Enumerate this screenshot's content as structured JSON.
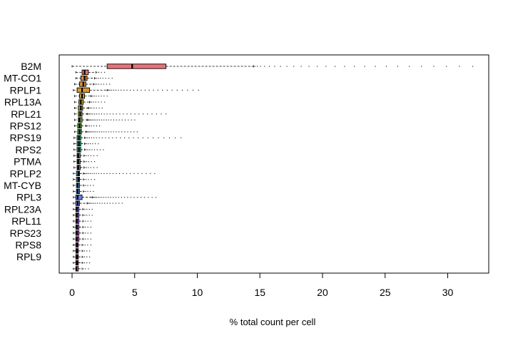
{
  "chart_data": {
    "type": "boxplot",
    "orientation": "horizontal",
    "xlabel": "% total count per cell",
    "xlim": [
      -1,
      33
    ],
    "xticks": [
      0,
      5,
      10,
      15,
      20,
      25,
      30
    ],
    "labeled_categories": [
      "B2M",
      "MT-CO1",
      "RPLP1",
      "RPL13A",
      "RPL21",
      "RPS12",
      "RPS19",
      "RPS2",
      "PTMA",
      "RPLP2",
      "MT-CYB",
      "RPL3",
      "RPL23A",
      "RPL11",
      "RPS23",
      "RPS8",
      "RPL9"
    ],
    "boxes": [
      {
        "q1": 2.8,
        "median": 4.8,
        "q3": 7.5,
        "wmin": 0.0,
        "wmax": 14.5,
        "outmax": 32.0,
        "color": "#E8727A"
      },
      {
        "q1": 0.8,
        "median": 1.0,
        "q3": 1.3,
        "wmin": 0.3,
        "wmax": 1.9,
        "outmax": 2.6,
        "color": "#E07A6A"
      },
      {
        "q1": 0.7,
        "median": 1.0,
        "q3": 1.2,
        "wmin": 0.3,
        "wmax": 1.8,
        "outmax": 3.2,
        "color": "#D8863A"
      },
      {
        "q1": 0.6,
        "median": 0.9,
        "q3": 1.1,
        "wmin": 0.2,
        "wmax": 1.7,
        "outmax": 3.0,
        "color": "#D89038"
      },
      {
        "q1": 0.4,
        "median": 0.8,
        "q3": 1.4,
        "wmin": 0.1,
        "wmax": 2.8,
        "outmax": 10.1,
        "color": "#D89A2E"
      },
      {
        "q1": 0.6,
        "median": 0.8,
        "q3": 1.0,
        "wmin": 0.2,
        "wmax": 1.5,
        "outmax": 2.8,
        "color": "#C9A227"
      },
      {
        "q1": 0.55,
        "median": 0.7,
        "q3": 0.9,
        "wmin": 0.2,
        "wmax": 1.4,
        "outmax": 2.6,
        "color": "#B9A923"
      },
      {
        "q1": 0.5,
        "median": 0.7,
        "q3": 0.85,
        "wmin": 0.2,
        "wmax": 1.3,
        "outmax": 2.4,
        "color": "#A8AE22"
      },
      {
        "q1": 0.5,
        "median": 0.65,
        "q3": 0.8,
        "wmin": 0.2,
        "wmax": 1.2,
        "outmax": 7.5,
        "color": "#94B324"
      },
      {
        "q1": 0.5,
        "median": 0.6,
        "q3": 0.8,
        "wmin": 0.2,
        "wmax": 1.2,
        "outmax": 5.0,
        "color": "#7CB72C"
      },
      {
        "q1": 0.45,
        "median": 0.6,
        "q3": 0.75,
        "wmin": 0.2,
        "wmax": 1.1,
        "outmax": 2.2,
        "color": "#5EBA3A"
      },
      {
        "q1": 0.45,
        "median": 0.6,
        "q3": 0.75,
        "wmin": 0.2,
        "wmax": 1.1,
        "outmax": 5.2,
        "color": "#3DBC4C"
      },
      {
        "q1": 0.4,
        "median": 0.55,
        "q3": 0.7,
        "wmin": 0.15,
        "wmax": 1.0,
        "outmax": 8.7,
        "color": "#20BD62"
      },
      {
        "q1": 0.4,
        "median": 0.55,
        "q3": 0.7,
        "wmin": 0.15,
        "wmax": 1.0,
        "outmax": 2.1,
        "color": "#10BD7A"
      },
      {
        "q1": 0.4,
        "median": 0.55,
        "q3": 0.7,
        "wmin": 0.15,
        "wmax": 1.0,
        "outmax": 2.5,
        "color": "#12BB92"
      },
      {
        "q1": 0.4,
        "median": 0.5,
        "q3": 0.65,
        "wmin": 0.15,
        "wmax": 0.95,
        "outmax": 2.0,
        "color": "#18B9A8"
      },
      {
        "q1": 0.4,
        "median": 0.5,
        "q3": 0.65,
        "wmin": 0.15,
        "wmax": 0.95,
        "outmax": 1.8,
        "color": "#1EB6BC"
      },
      {
        "q1": 0.4,
        "median": 0.5,
        "q3": 0.65,
        "wmin": 0.15,
        "wmax": 0.95,
        "outmax": 2.0,
        "color": "#22B2CD"
      },
      {
        "q1": 0.35,
        "median": 0.5,
        "q3": 0.6,
        "wmin": 0.1,
        "wmax": 0.9,
        "outmax": 6.6,
        "color": "#26ACDC"
      },
      {
        "q1": 0.35,
        "median": 0.5,
        "q3": 0.6,
        "wmin": 0.1,
        "wmax": 0.9,
        "outmax": 1.8,
        "color": "#2AA4E6"
      },
      {
        "q1": 0.35,
        "median": 0.45,
        "q3": 0.6,
        "wmin": 0.1,
        "wmax": 0.9,
        "outmax": 1.7,
        "color": "#3A9AEE"
      },
      {
        "q1": 0.35,
        "median": 0.45,
        "q3": 0.6,
        "wmin": 0.1,
        "wmax": 0.9,
        "outmax": 1.7,
        "color": "#4C90F2"
      },
      {
        "q1": 0.3,
        "median": 0.45,
        "q3": 0.8,
        "wmin": 0.1,
        "wmax": 1.6,
        "outmax": 6.7,
        "color": "#5C86F4"
      },
      {
        "q1": 0.3,
        "median": 0.45,
        "q3": 0.6,
        "wmin": 0.1,
        "wmax": 1.2,
        "outmax": 4.0,
        "color": "#6E7CF4"
      },
      {
        "q1": 0.3,
        "median": 0.4,
        "q3": 0.55,
        "wmin": 0.1,
        "wmax": 0.85,
        "outmax": 1.6,
        "color": "#8274F2"
      },
      {
        "q1": 0.3,
        "median": 0.4,
        "q3": 0.55,
        "wmin": 0.1,
        "wmax": 0.85,
        "outmax": 1.6,
        "color": "#946CEE"
      },
      {
        "q1": 0.3,
        "median": 0.4,
        "q3": 0.55,
        "wmin": 0.1,
        "wmax": 0.85,
        "outmax": 1.5,
        "color": "#A666E8"
      },
      {
        "q1": 0.3,
        "median": 0.4,
        "q3": 0.55,
        "wmin": 0.1,
        "wmax": 0.85,
        "outmax": 1.5,
        "color": "#B660E0"
      },
      {
        "q1": 0.3,
        "median": 0.4,
        "q3": 0.55,
        "wmin": 0.1,
        "wmax": 0.85,
        "outmax": 1.5,
        "color": "#C45CD6"
      },
      {
        "q1": 0.3,
        "median": 0.4,
        "q3": 0.55,
        "wmin": 0.1,
        "wmax": 0.85,
        "outmax": 1.5,
        "color": "#D058CA"
      },
      {
        "q1": 0.3,
        "median": 0.4,
        "q3": 0.5,
        "wmin": 0.1,
        "wmax": 0.8,
        "outmax": 1.5,
        "color": "#DA56BC"
      },
      {
        "q1": 0.3,
        "median": 0.4,
        "q3": 0.5,
        "wmin": 0.1,
        "wmax": 0.8,
        "outmax": 1.4,
        "color": "#E256AE"
      },
      {
        "q1": 0.3,
        "median": 0.4,
        "q3": 0.5,
        "wmin": 0.1,
        "wmax": 0.8,
        "outmax": 1.4,
        "color": "#E858A0"
      },
      {
        "q1": 0.3,
        "median": 0.4,
        "q3": 0.5,
        "wmin": 0.1,
        "wmax": 0.8,
        "outmax": 1.4,
        "color": "#EC5C92"
      },
      {
        "q1": 0.3,
        "median": 0.35,
        "q3": 0.5,
        "wmin": 0.1,
        "wmax": 0.8,
        "outmax": 1.3,
        "color": "#EE6286"
      }
    ]
  }
}
